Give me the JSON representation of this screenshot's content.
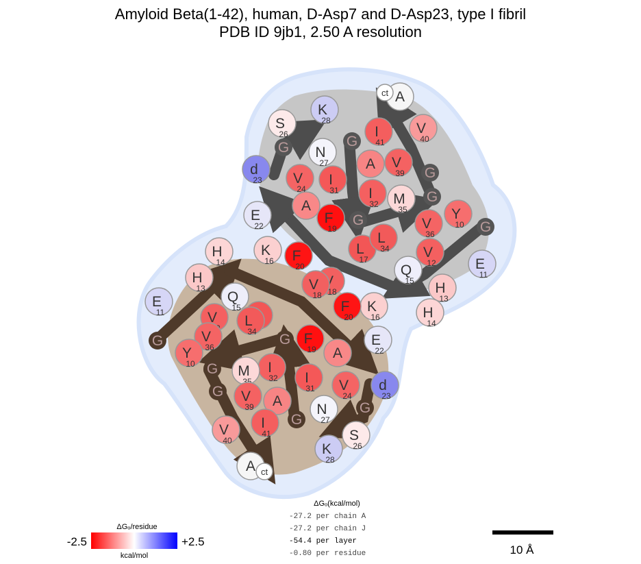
{
  "title": {
    "line1": "Amyloid Beta(1-42), human, D-Asp7 and D-Asp23, type I fibril",
    "line2": "PDB ID 9jb1, 2.50 A resolution"
  },
  "energy": {
    "header": "ΔGₒ(kcal/mol)",
    "lines": [
      "-27.2 per chain A",
      "-27.2 per chain J",
      "-54.4 per layer",
      "-0.80 per residue"
    ]
  },
  "colorbar": {
    "title": "ΔGₒ/residue",
    "min_label": "-2.5",
    "max_label": "+2.5",
    "unit": "kcal/mol",
    "low_color": "#ff0000",
    "mid_color": "#ffffff",
    "high_color": "#0000ff"
  },
  "scale_bar": {
    "label": "10 Å"
  },
  "colors": {
    "chainA_backbone": "#4d4d4d",
    "chainA_fill": "#c6c6c6",
    "chainJ_backbone": "#4f3a2a",
    "chainJ_fill": "#c8b5a0",
    "halo": "#dfe9fb",
    "glycine": "#555555"
  },
  "chainA": [
    {
      "aa": "E",
      "num": "11",
      "c": "#d6d6f6"
    },
    {
      "aa": "V",
      "num": "12",
      "c": "#f46060"
    },
    {
      "aa": "H",
      "num": "13",
      "c": "#fbc8c8"
    },
    {
      "aa": "H",
      "num": "14",
      "c": "#fcd6d6"
    },
    {
      "aa": "Q",
      "num": "15",
      "c": "#eeeefa"
    },
    {
      "aa": "K",
      "num": "16",
      "c": "#fbd0d0"
    },
    {
      "aa": "L",
      "num": "17",
      "c": "#f25656"
    },
    {
      "aa": "V",
      "num": "18",
      "c": "#f26060"
    },
    {
      "aa": "F",
      "num": "19",
      "c": "#ff1010"
    },
    {
      "aa": "F",
      "num": "20",
      "c": "#ff1414"
    },
    {
      "aa": "A",
      "num": "",
      "c": "#f88888"
    },
    {
      "aa": "E",
      "num": "22",
      "c": "#e6e6f8"
    },
    {
      "aa": "d",
      "num": "23",
      "c": "#8888ee"
    },
    {
      "aa": "V",
      "num": "24",
      "c": "#f46464"
    },
    {
      "aa": "G",
      "num": "",
      "c": "#555555"
    },
    {
      "aa": "S",
      "num": "26",
      "c": "#fdeaea"
    },
    {
      "aa": "N",
      "num": "27",
      "c": "#f4f4fb"
    },
    {
      "aa": "K",
      "num": "28",
      "c": "#ccccf4"
    },
    {
      "aa": "G",
      "num": "",
      "c": "#555555"
    },
    {
      "aa": "A",
      "num": "",
      "c": "#f78484"
    },
    {
      "aa": "I",
      "num": "31",
      "c": "#f45858"
    },
    {
      "aa": "I",
      "num": "32",
      "c": "#f46060"
    },
    {
      "aa": "G",
      "num": "",
      "c": "#555555"
    },
    {
      "aa": "L",
      "num": "34",
      "c": "#f25a5a"
    },
    {
      "aa": "M",
      "num": "35",
      "c": "#fcd8d8"
    },
    {
      "aa": "V",
      "num": "36",
      "c": "#f46464"
    },
    {
      "aa": "G",
      "num": "",
      "c": "#555555"
    },
    {
      "aa": "G",
      "num": "",
      "c": "#555555"
    },
    {
      "aa": "V",
      "num": "39",
      "c": "#f46262"
    },
    {
      "aa": "V",
      "num": "40",
      "c": "#f89a9a"
    },
    {
      "aa": "I",
      "num": "41",
      "c": "#f45e5e"
    },
    {
      "aa": "A",
      "num": "",
      "c": "#f6f6f6"
    },
    {
      "aa": "Y",
      "num": "10",
      "c": "#f66e6e"
    },
    {
      "aa": "G",
      "num": "",
      "c": "#555555"
    },
    {
      "aa": "ct",
      "num": "",
      "c": "#ffffff"
    }
  ],
  "chainJ": [
    {
      "aa": "E",
      "num": "11",
      "c": "#d6d6f6"
    },
    {
      "aa": "V",
      "num": "12",
      "c": "#f46060"
    },
    {
      "aa": "H",
      "num": "13",
      "c": "#fbc8c8"
    },
    {
      "aa": "H",
      "num": "14",
      "c": "#fcd6d6"
    },
    {
      "aa": "Q",
      "num": "15",
      "c": "#eeeefa"
    },
    {
      "aa": "K",
      "num": "16",
      "c": "#fbd0d0"
    },
    {
      "aa": "L",
      "num": "17",
      "c": "#f25656"
    },
    {
      "aa": "V",
      "num": "18",
      "c": "#f26060"
    },
    {
      "aa": "F",
      "num": "19",
      "c": "#ff1010"
    },
    {
      "aa": "F",
      "num": "20",
      "c": "#ff1414"
    },
    {
      "aa": "A",
      "num": "",
      "c": "#f88888"
    },
    {
      "aa": "E",
      "num": "22",
      "c": "#e6e6f8"
    },
    {
      "aa": "d",
      "num": "23",
      "c": "#8888ee"
    },
    {
      "aa": "V",
      "num": "24",
      "c": "#f46464"
    },
    {
      "aa": "G",
      "num": "",
      "c": "#4f3a2a"
    },
    {
      "aa": "S",
      "num": "26",
      "c": "#fdeaea"
    },
    {
      "aa": "N",
      "num": "27",
      "c": "#f4f4fb"
    },
    {
      "aa": "K",
      "num": "28",
      "c": "#ccccf4"
    },
    {
      "aa": "G",
      "num": "",
      "c": "#4f3a2a"
    },
    {
      "aa": "A",
      "num": "",
      "c": "#f78484"
    },
    {
      "aa": "I",
      "num": "31",
      "c": "#f45858"
    },
    {
      "aa": "I",
      "num": "32",
      "c": "#f46060"
    },
    {
      "aa": "G",
      "num": "",
      "c": "#4f3a2a"
    },
    {
      "aa": "L",
      "num": "34",
      "c": "#f25a5a"
    },
    {
      "aa": "M",
      "num": "35",
      "c": "#fcd8d8"
    },
    {
      "aa": "V",
      "num": "36",
      "c": "#f46464"
    },
    {
      "aa": "G",
      "num": "",
      "c": "#4f3a2a"
    },
    {
      "aa": "G",
      "num": "",
      "c": "#4f3a2a"
    },
    {
      "aa": "V",
      "num": "39",
      "c": "#f46262"
    },
    {
      "aa": "V",
      "num": "40",
      "c": "#f89a9a"
    },
    {
      "aa": "I",
      "num": "41",
      "c": "#f45e5e"
    },
    {
      "aa": "A",
      "num": "",
      "c": "#f6f6f6"
    },
    {
      "aa": "Y",
      "num": "10",
      "c": "#f66e6e"
    },
    {
      "aa": "G",
      "num": "",
      "c": "#4f3a2a"
    },
    {
      "aa": "ct",
      "num": "",
      "c": "#ffffff"
    }
  ]
}
